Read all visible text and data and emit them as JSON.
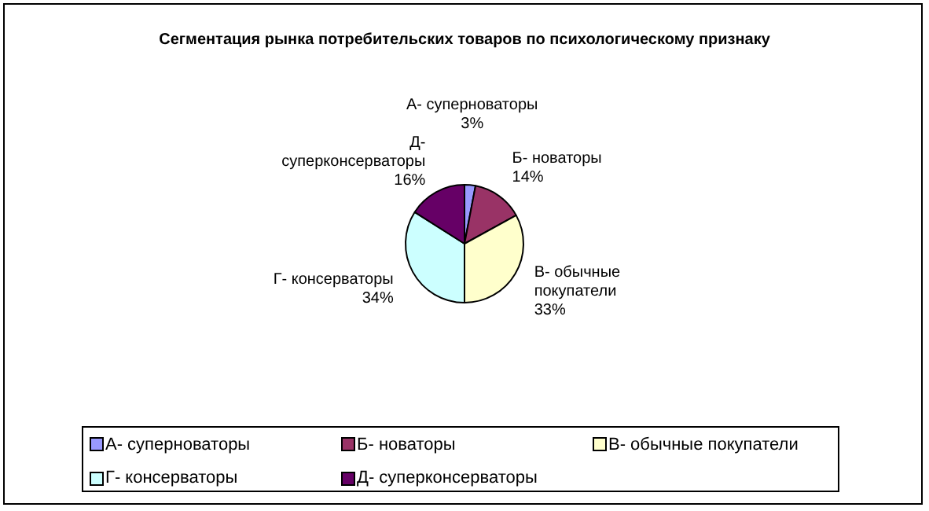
{
  "chart_data": {
    "type": "pie",
    "title": "Сегментация рынка потребительских товаров по психологическому признаку",
    "categories": [
      "А- суперноваторы",
      "Б- новаторы",
      "В- обычные покупатели",
      "Г- консерваторы",
      "Д- суперконсерваторы"
    ],
    "values": [
      3,
      14,
      33,
      34,
      16
    ],
    "colors": [
      "#9999ff",
      "#993366",
      "#ffffcc",
      "#ccffff",
      "#660066"
    ],
    "value_labels": [
      "3%",
      "14%",
      "33%",
      "34%",
      "16%"
    ],
    "legend": "bottom"
  }
}
